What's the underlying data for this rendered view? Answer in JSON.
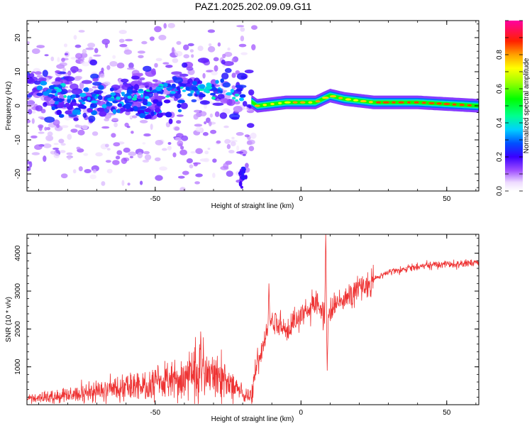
{
  "title": "PAZ1.2025.202.09.09.G11",
  "chart_data": [
    {
      "type": "heatmap",
      "xlabel": "Height of straight line (km)",
      "ylabel": "Frequency (Hz)",
      "xlim": [
        -94,
        61
      ],
      "ylim": [
        -25,
        25
      ],
      "xticks": [
        -50,
        0,
        50
      ],
      "xtick_labels": [
        "-50",
        "0",
        "50"
      ],
      "yticks": [
        20,
        10,
        0,
        -10,
        -20
      ],
      "ytick_labels": [
        "20",
        "10",
        "0",
        "-10",
        "-20"
      ],
      "colorbar": {
        "label": "Normalized spectral amplitude",
        "range": [
          0,
          1
        ],
        "ticks": [
          0.0,
          0.2,
          0.4,
          0.6,
          0.8
        ],
        "tick_labels": [
          "0.0",
          "0.2",
          "0.4",
          "0.6",
          "0.8"
        ],
        "colormap": "rainbow (white, violet, blue, cyan, green, yellow, orange, red, magenta)"
      },
      "ridge_frequency_hz": [
        {
          "x": -94,
          "y": 6
        },
        {
          "x": -85,
          "y": 4
        },
        {
          "x": -75,
          "y": 3
        },
        {
          "x": -65,
          "y": 2
        },
        {
          "x": -55,
          "y": 3
        },
        {
          "x": -45,
          "y": 5
        },
        {
          "x": -35,
          "y": 5
        },
        {
          "x": -25,
          "y": 4
        },
        {
          "x": -20,
          "y": 3
        },
        {
          "x": -15,
          "y": 0
        },
        {
          "x": -5,
          "y": 1
        },
        {
          "x": 5,
          "y": 1
        },
        {
          "x": 10,
          "y": 3
        },
        {
          "x": 15,
          "y": 2
        },
        {
          "x": 25,
          "y": 1
        },
        {
          "x": 40,
          "y": 1
        },
        {
          "x": 61,
          "y": 0
        }
      ]
    },
    {
      "type": "line",
      "xlabel": "Height of straight line (km)",
      "ylabel": "SNR (10 * v/v)",
      "xlim": [
        -94,
        61
      ],
      "ylim": [
        0,
        4500
      ],
      "xticks": [
        -50,
        0,
        50
      ],
      "xtick_labels": [
        "-50",
        "0",
        "50"
      ],
      "yticks": [
        1000,
        2000,
        3000,
        4000
      ],
      "ytick_labels": [
        "1000",
        "2000",
        "3000",
        "4000"
      ],
      "color": "#ee3333",
      "trend": [
        {
          "x": -94,
          "y": 150
        },
        {
          "x": -80,
          "y": 250
        },
        {
          "x": -70,
          "y": 350
        },
        {
          "x": -60,
          "y": 450
        },
        {
          "x": -50,
          "y": 550
        },
        {
          "x": -40,
          "y": 700
        },
        {
          "x": -35,
          "y": 900
        },
        {
          "x": -30,
          "y": 800
        },
        {
          "x": -25,
          "y": 550
        },
        {
          "x": -20,
          "y": 300
        },
        {
          "x": -17,
          "y": 200
        },
        {
          "x": -15,
          "y": 1100
        },
        {
          "x": -12,
          "y": 1800
        },
        {
          "x": -10,
          "y": 2200
        },
        {
          "x": -5,
          "y": 2000
        },
        {
          "x": 0,
          "y": 2400
        },
        {
          "x": 5,
          "y": 2700
        },
        {
          "x": 8,
          "y": 2400
        },
        {
          "x": 15,
          "y": 2800
        },
        {
          "x": 20,
          "y": 3000
        },
        {
          "x": 25,
          "y": 3300
        },
        {
          "x": 30,
          "y": 3500
        },
        {
          "x": 40,
          "y": 3650
        },
        {
          "x": 50,
          "y": 3700
        },
        {
          "x": 61,
          "y": 3750
        }
      ],
      "features": [
        {
          "x": 8.5,
          "y": 4500,
          "note": "peak"
        },
        {
          "x": 9,
          "y": 900,
          "note": "dip"
        },
        {
          "x": -11,
          "y": 3200,
          "note": "peak"
        }
      ]
    }
  ]
}
